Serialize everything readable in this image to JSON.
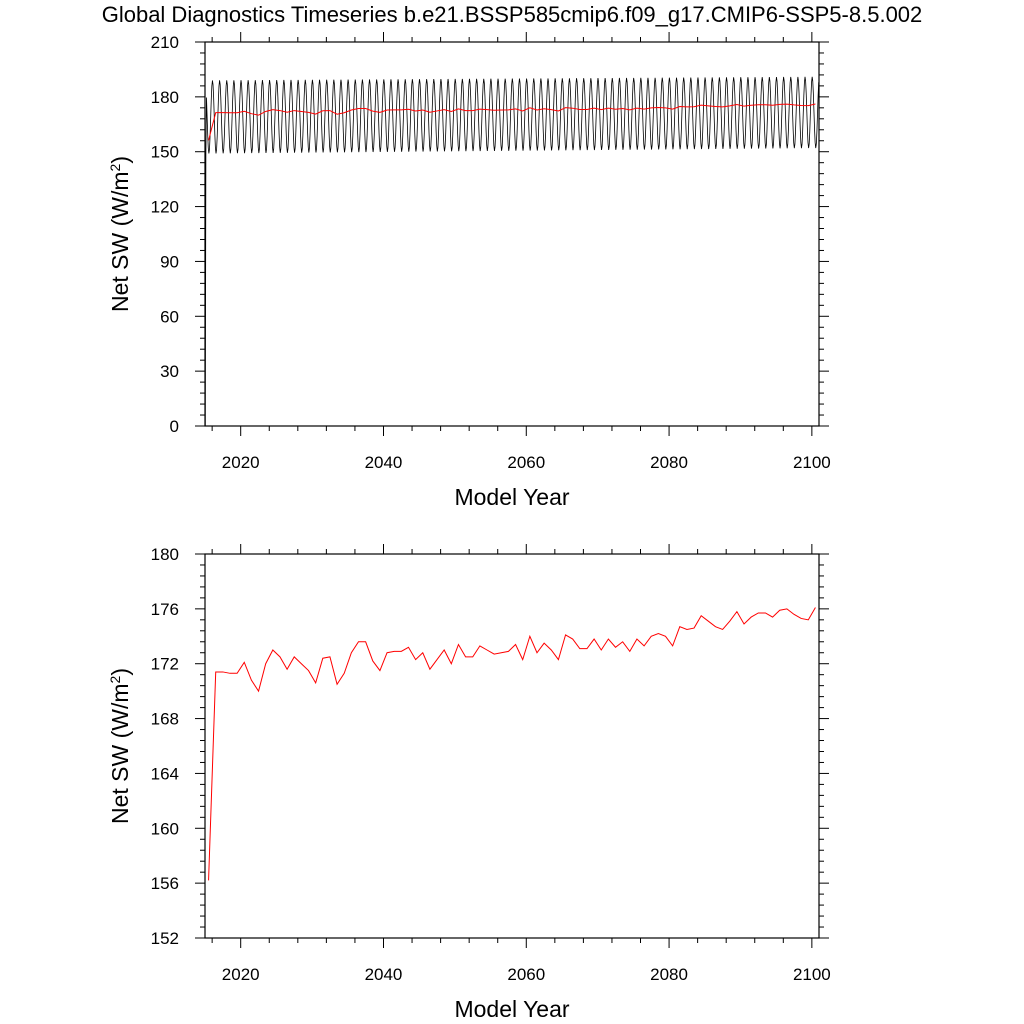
{
  "title": "Global Diagnostics Timeseries b.e21.BSSP585cmip6.f09_g17.CMIP6-SSP5-8.5.002",
  "colors": {
    "monthly": "#000000",
    "annual": "#ff0000",
    "axis": "#000000"
  },
  "chart_data": [
    {
      "type": "line",
      "xlabel": "Model Year",
      "ylabel": "Net SW (W/m2)",
      "xlim": [
        2015,
        2101
      ],
      "ylim": [
        0,
        210
      ],
      "xticks": [
        2020,
        2040,
        2060,
        2080,
        2100
      ],
      "xtick_labels": [
        "2020",
        "2040",
        "2060",
        "2080",
        "2100"
      ],
      "yticks": [
        0,
        30,
        60,
        90,
        120,
        150,
        180,
        210
      ],
      "ytick_labels": [
        "0",
        "30",
        "60",
        "90",
        "120",
        "150",
        "180",
        "210"
      ],
      "monthly_cycle": {
        "min_start": 149,
        "max_start": 189,
        "min_end": 152,
        "max_end": 191
      },
      "series": [
        {
          "values_ref": "monthly",
          "color": "#000000"
        },
        {
          "values_ref": "annual",
          "color": "#ff0000"
        }
      ]
    },
    {
      "type": "line",
      "xlabel": "Model Year",
      "ylabel": "Net SW (W/m2)",
      "xlim": [
        2015,
        2101
      ],
      "ylim": [
        152,
        180
      ],
      "xticks": [
        2020,
        2040,
        2060,
        2080,
        2100
      ],
      "xtick_labels": [
        "2020",
        "2040",
        "2060",
        "2080",
        "2100"
      ],
      "yticks": [
        152,
        156,
        160,
        164,
        168,
        172,
        176,
        180
      ],
      "ytick_labels": [
        "152",
        "156",
        "160",
        "164",
        "168",
        "172",
        "176",
        "180"
      ],
      "series": [
        {
          "color": "#ff0000",
          "x": [
            2015.5,
            2016.5,
            2017.5,
            2018.5,
            2019.5,
            2020.5,
            2021.5,
            2022.5,
            2023.5,
            2024.5,
            2025.5,
            2026.5,
            2027.5,
            2028.5,
            2029.5,
            2030.5,
            2031.5,
            2032.5,
            2033.5,
            2034.5,
            2035.5,
            2036.5,
            2037.5,
            2038.5,
            2039.5,
            2040.5,
            2041.5,
            2042.5,
            2043.5,
            2044.5,
            2045.5,
            2046.5,
            2047.5,
            2048.5,
            2049.5,
            2050.5,
            2051.5,
            2052.5,
            2053.5,
            2054.5,
            2055.5,
            2056.5,
            2057.5,
            2058.5,
            2059.5,
            2060.5,
            2061.5,
            2062.5,
            2063.5,
            2064.5,
            2065.5,
            2066.5,
            2067.5,
            2068.5,
            2069.5,
            2070.5,
            2071.5,
            2072.5,
            2073.5,
            2074.5,
            2075.5,
            2076.5,
            2077.5,
            2078.5,
            2079.5,
            2080.5,
            2081.5,
            2082.5,
            2083.5,
            2084.5,
            2085.5,
            2086.5,
            2087.5,
            2088.5,
            2089.5,
            2090.5,
            2091.5,
            2092.5,
            2093.5,
            2094.5,
            2095.5,
            2096.5,
            2097.5,
            2098.5,
            2099.5,
            2100.5
          ],
          "values": [
            156.2,
            171.4,
            171.4,
            171.3,
            171.3,
            172.1,
            170.8,
            170.0,
            172.0,
            173.0,
            172.5,
            171.6,
            172.5,
            172.0,
            171.5,
            170.6,
            172.4,
            172.5,
            170.5,
            171.3,
            172.8,
            173.6,
            173.6,
            172.2,
            171.5,
            172.8,
            172.9,
            172.9,
            173.2,
            172.3,
            172.8,
            171.6,
            172.3,
            173.0,
            172.0,
            173.4,
            172.5,
            172.5,
            173.3,
            173.0,
            172.7,
            172.8,
            172.9,
            173.4,
            172.3,
            174.0,
            172.8,
            173.5,
            173.0,
            172.3,
            174.1,
            173.8,
            173.1,
            173.1,
            173.8,
            173.0,
            173.8,
            173.2,
            173.6,
            172.9,
            173.8,
            173.3,
            174.0,
            174.2,
            174.0,
            173.3,
            174.7,
            174.5,
            174.6,
            175.5,
            175.1,
            174.7,
            174.5,
            175.1,
            175.8,
            174.9,
            175.4,
            175.7,
            175.7,
            175.4,
            175.9,
            176.0,
            175.6,
            175.3,
            175.2,
            176.1
          ]
        }
      ]
    }
  ]
}
